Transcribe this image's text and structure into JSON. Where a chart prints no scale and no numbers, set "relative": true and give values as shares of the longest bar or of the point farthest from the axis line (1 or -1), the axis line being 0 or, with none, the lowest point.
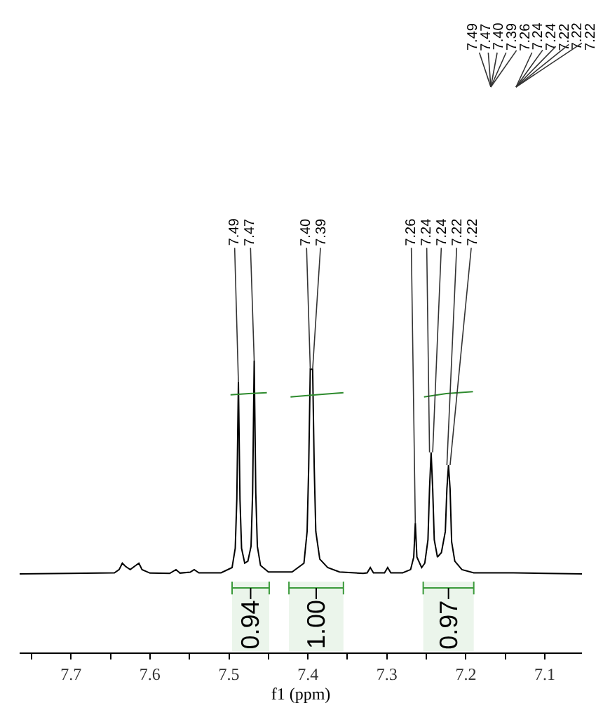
{
  "chart_data": {
    "type": "line",
    "relative": true,
    "xlabel": "f1 (ppm)",
    "xlim": [
      7.765,
      7.053
    ],
    "xticks": [
      {
        "value": 7.75,
        "label": null
      },
      7.7,
      {
        "value": 7.65,
        "label": null
      },
      7.6,
      {
        "value": 7.55,
        "label": null
      },
      7.5,
      {
        "value": 7.45,
        "label": null
      },
      7.4,
      {
        "value": 7.35,
        "label": null
      },
      7.3,
      {
        "value": 7.25,
        "label": null
      },
      7.2,
      {
        "value": 7.15,
        "label": null
      },
      7.1
    ],
    "tick_labels": "x",
    "grid": false,
    "marker": "none",
    "line_style": "solid",
    "series": [
      {
        "color": "#000000",
        "x": [
          7.765,
          7.7,
          7.645,
          7.639,
          7.635,
          7.631,
          7.625,
          7.618,
          7.614,
          7.61,
          7.6,
          7.575,
          7.567,
          7.562,
          7.549,
          7.544,
          7.538,
          7.51,
          7.496,
          7.492,
          7.49,
          7.488,
          7.486,
          7.484,
          7.48,
          7.476,
          7.472,
          7.47,
          7.468,
          7.466,
          7.464,
          7.46,
          7.45,
          7.42,
          7.405,
          7.401,
          7.399,
          7.397,
          7.394,
          7.392,
          7.39,
          7.385,
          7.375,
          7.36,
          7.33,
          7.325,
          7.321,
          7.317,
          7.303,
          7.299,
          7.295,
          7.28,
          7.27,
          7.266,
          7.264,
          7.262,
          7.256,
          7.252,
          7.248,
          7.246,
          7.244,
          7.242,
          7.24,
          7.236,
          7.231,
          7.226,
          7.224,
          7.222,
          7.22,
          7.218,
          7.214,
          7.205,
          7.19,
          7.155,
          7.14,
          7.1,
          7.053
        ],
        "values": [
          0.269,
          0.271,
          0.273,
          0.284,
          0.306,
          0.295,
          0.284,
          0.298,
          0.306,
          0.284,
          0.272,
          0.271,
          0.284,
          0.272,
          0.275,
          0.284,
          0.273,
          0.273,
          0.291,
          0.357,
          0.525,
          0.927,
          0.525,
          0.357,
          0.306,
          0.313,
          0.364,
          0.547,
          1,
          0.547,
          0.364,
          0.298,
          0.276,
          0.276,
          0.306,
          0.415,
          0.635,
          0.971,
          0.971,
          0.635,
          0.415,
          0.32,
          0.291,
          0.276,
          0.271,
          0.273,
          0.291,
          0.273,
          0.273,
          0.291,
          0.273,
          0.273,
          0.284,
          0.327,
          0.444,
          0.327,
          0.291,
          0.306,
          0.386,
          0.561,
          0.686,
          0.561,
          0.386,
          0.327,
          0.342,
          0.415,
          0.561,
          0.642,
          0.561,
          0.379,
          0.313,
          0.284,
          0.273,
          0.273,
          0.273,
          0.271,
          0.269
        ]
      },
      {
        "color": "#2e8b2e",
        "x": [
          7.498,
          7.475,
          7.452
        ],
        "values": [
          0.883,
          0.887,
          0.89
        ]
      },
      {
        "color": "#2e8b2e",
        "x": [
          7.422,
          7.39,
          7.355
        ],
        "values": [
          0.876,
          0.883,
          0.89
        ]
      },
      {
        "color": "#2e8b2e",
        "x": [
          7.253,
          7.225,
          7.191
        ],
        "values": [
          0.876,
          0.887,
          0.894
        ]
      }
    ],
    "bands": [
      {
        "axis": "x",
        "from": 7.496,
        "to": 7.449,
        "label": "0.94",
        "color": "#3a9a3a"
      },
      {
        "axis": "x",
        "from": 7.424,
        "to": 7.355,
        "label": "1.00",
        "color": "#3a9a3a"
      },
      {
        "axis": "x",
        "from": 7.254,
        "to": 7.19,
        "label": "0.97",
        "color": "#3a9a3a"
      }
    ],
    "annotations": [
      {
        "text": "7.49",
        "x": 7.488,
        "y": 0.927
      },
      {
        "text": "7.47",
        "x": 7.468,
        "y": 1
      },
      {
        "text": "7.40",
        "x": 7.397,
        "y": 0.971
      },
      {
        "text": "7.39",
        "x": 7.394,
        "y": 0.971
      },
      {
        "text": "7.26",
        "x": 7.264,
        "y": 0.444
      },
      {
        "text": "7.24",
        "x": 7.246,
        "y": 0.686
      },
      {
        "text": "7.24",
        "x": 7.242,
        "y": 0.686
      },
      {
        "text": "7.22",
        "x": 7.224,
        "y": 0.642
      },
      {
        "text": "7.22",
        "x": 7.22,
        "y": 0.642
      },
      "7.49",
      "7.47",
      "7.40",
      "7.39",
      "7.26",
      "7.24",
      "7.24",
      "7.22",
      "7.22",
      "7.22"
    ]
  }
}
